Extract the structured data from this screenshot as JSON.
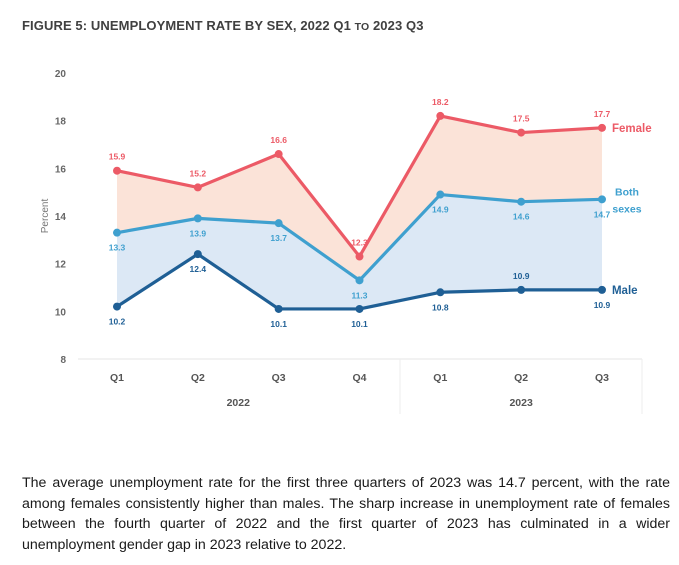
{
  "figure": {
    "title_prefix": "Figure 5:",
    "title_main": "Unemployment rate by sex,",
    "title_range_start": "2022 Q1",
    "title_to": "to",
    "title_range_end": "2023 Q3"
  },
  "chart_data": {
    "type": "line",
    "title": "Figure 5: Unemployment rate by sex, 2022 Q1 to 2023 Q3",
    "xlabel": "",
    "ylabel": "Percent",
    "ylim": [
      8,
      20
    ],
    "yticks": [
      8,
      10,
      12,
      14,
      16,
      18,
      20
    ],
    "categories": [
      "Q1",
      "Q2",
      "Q3",
      "Q4",
      "Q1",
      "Q2",
      "Q3"
    ],
    "groups": [
      {
        "label": "2022",
        "span": [
          0,
          3
        ]
      },
      {
        "label": "2023",
        "span": [
          4,
          6
        ]
      }
    ],
    "grid": false,
    "legend": "inline-right",
    "series": [
      {
        "name": "Female",
        "legend_label": [
          "Female"
        ],
        "color": "#ec5a66",
        "fill": "#fbe3d8",
        "values": [
          15.9,
          15.2,
          16.6,
          12.3,
          18.2,
          17.5,
          17.7
        ],
        "label_pos": [
          "above",
          "above",
          "above",
          "above",
          "above",
          "above",
          "above"
        ]
      },
      {
        "name": "Both sexes",
        "legend_label": [
          "Both",
          "sexes"
        ],
        "color": "#3fa0cf",
        "fill": "#dce8f5",
        "values": [
          13.3,
          13.9,
          13.7,
          11.3,
          14.9,
          14.6,
          14.7
        ],
        "label_pos": [
          "below",
          "below",
          "below",
          "below",
          "below",
          "below",
          "below"
        ]
      },
      {
        "name": "Male",
        "legend_label": [
          "Male"
        ],
        "color": "#1f5f95",
        "fill": null,
        "values": [
          10.2,
          12.4,
          10.1,
          10.1,
          10.8,
          10.9,
          10.9
        ],
        "label_pos": [
          "below",
          "below",
          "below",
          "below",
          "below",
          "above",
          "below"
        ]
      }
    ]
  },
  "body_text": "The average unemployment rate for the first three quarters of 2023 was 14.7 percent, with the rate among females consistently higher than males. The sharp increase in unemployment rate of females between the fourth quarter of 2022 and the first quarter of 2023 has culminated in a wider unemployment gender gap in 2023 relative to 2022."
}
